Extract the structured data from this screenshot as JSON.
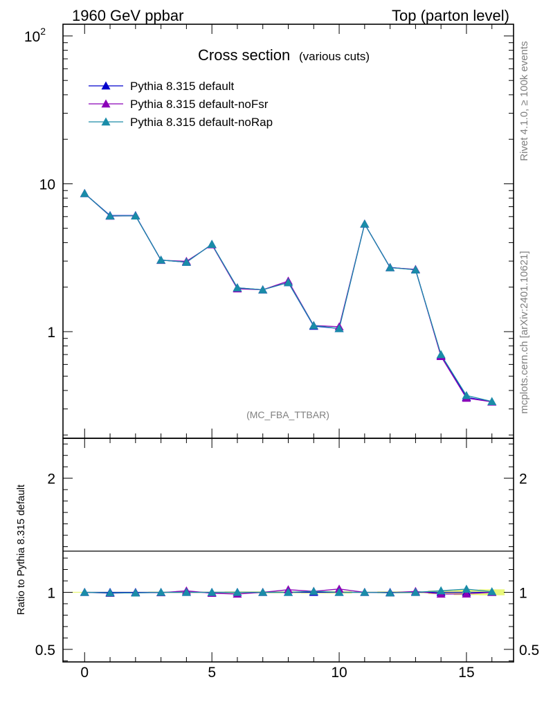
{
  "header": {
    "left": "1960 GeV ppbar",
    "right": "Top (parton level)"
  },
  "side_labels": {
    "rivet": "Rivet 4.1.0, ≥ 100k events",
    "mcplots": "mcplots.cern.ch [arXiv:2401.10621]"
  },
  "chart_data": {
    "type": "line",
    "title": "Cross section",
    "subtitle": "(various cuts)",
    "watermark": "(MC_FBA_TTBAR)",
    "xlabel": "",
    "ylabel": "",
    "ratio_ylabel": "Ratio to Pythia 8.315 default",
    "xlim": [
      -0.85,
      16.85
    ],
    "ylim": [
      0.19,
      120
    ],
    "yscale": "log",
    "ratio_ylim": [
      0.39,
      2.35
    ],
    "x_ticks": [
      0,
      5,
      10,
      15
    ],
    "x_tick_labels": [
      "0",
      "5",
      "10",
      "15"
    ],
    "y_tick_labels": [
      {
        "value": 1,
        "label": "1"
      },
      {
        "value": 10,
        "label": "10"
      },
      {
        "value": 100,
        "label": "10",
        "sup": "2"
      }
    ],
    "ratio_tick_labels": [
      {
        "value": 0.5,
        "label": "0.5"
      },
      {
        "value": 1,
        "label": "1"
      },
      {
        "value": 2,
        "label": "2"
      }
    ],
    "x": [
      0,
      1,
      2,
      3,
      4,
      5,
      6,
      7,
      8,
      9,
      10,
      11,
      12,
      13,
      14,
      15,
      16
    ],
    "series": [
      {
        "name": "Pythia 8.315 default",
        "color": "#0000cc",
        "values": [
          8.6,
          6.1,
          6.1,
          3.05,
          2.95,
          3.9,
          1.98,
          1.92,
          2.15,
          1.09,
          1.05,
          5.35,
          2.72,
          2.62,
          0.69,
          0.36,
          0.335
        ]
      },
      {
        "name": "Pythia 8.315 default-noFsr",
        "color": "#8b00b8",
        "values": [
          8.6,
          6.05,
          6.08,
          3.04,
          2.99,
          3.87,
          1.95,
          1.92,
          2.2,
          1.1,
          1.08,
          5.35,
          2.71,
          2.64,
          0.68,
          0.355,
          0.335
        ]
      },
      {
        "name": "Pythia 8.315 default-noRap",
        "color": "#1a8ca8",
        "values": [
          8.6,
          6.07,
          6.07,
          3.05,
          2.95,
          3.9,
          1.98,
          1.92,
          2.15,
          1.1,
          1.05,
          5.35,
          2.71,
          2.62,
          0.7,
          0.37,
          0.337
        ]
      }
    ],
    "ratio_series": [
      {
        "name": "Pythia 8.315 default",
        "color": "#0000cc",
        "values": [
          1,
          1,
          1,
          1,
          1,
          1,
          1,
          1,
          1,
          1,
          1,
          1,
          1,
          1,
          1,
          1,
          1
        ]
      },
      {
        "name": "Pythia 8.315 default-noFsr",
        "color": "#8b00b8",
        "values": [
          1.0,
          0.992,
          0.997,
          0.997,
          1.013,
          0.992,
          0.985,
          1.0,
          1.023,
          1.009,
          1.029,
          1.0,
          0.996,
          1.008,
          0.985,
          0.986,
          1.0
        ]
      },
      {
        "name": "Pythia 8.315 default-noRap",
        "color": "#1a8ca8",
        "values": [
          1.0,
          0.995,
          0.995,
          1.0,
          1.0,
          1.0,
          1.0,
          1.0,
          1.0,
          1.009,
          1.0,
          1.0,
          0.996,
          1.0,
          1.014,
          1.028,
          1.006
        ]
      }
    ],
    "ratio_band": {
      "color": "#e8f77a",
      "halfwidth": [
        0.004,
        0.004,
        0.004,
        0.006,
        0.006,
        0.006,
        0.008,
        0.008,
        0.008,
        0.01,
        0.01,
        0.005,
        0.008,
        0.008,
        0.016,
        0.024,
        0.026
      ]
    }
  }
}
